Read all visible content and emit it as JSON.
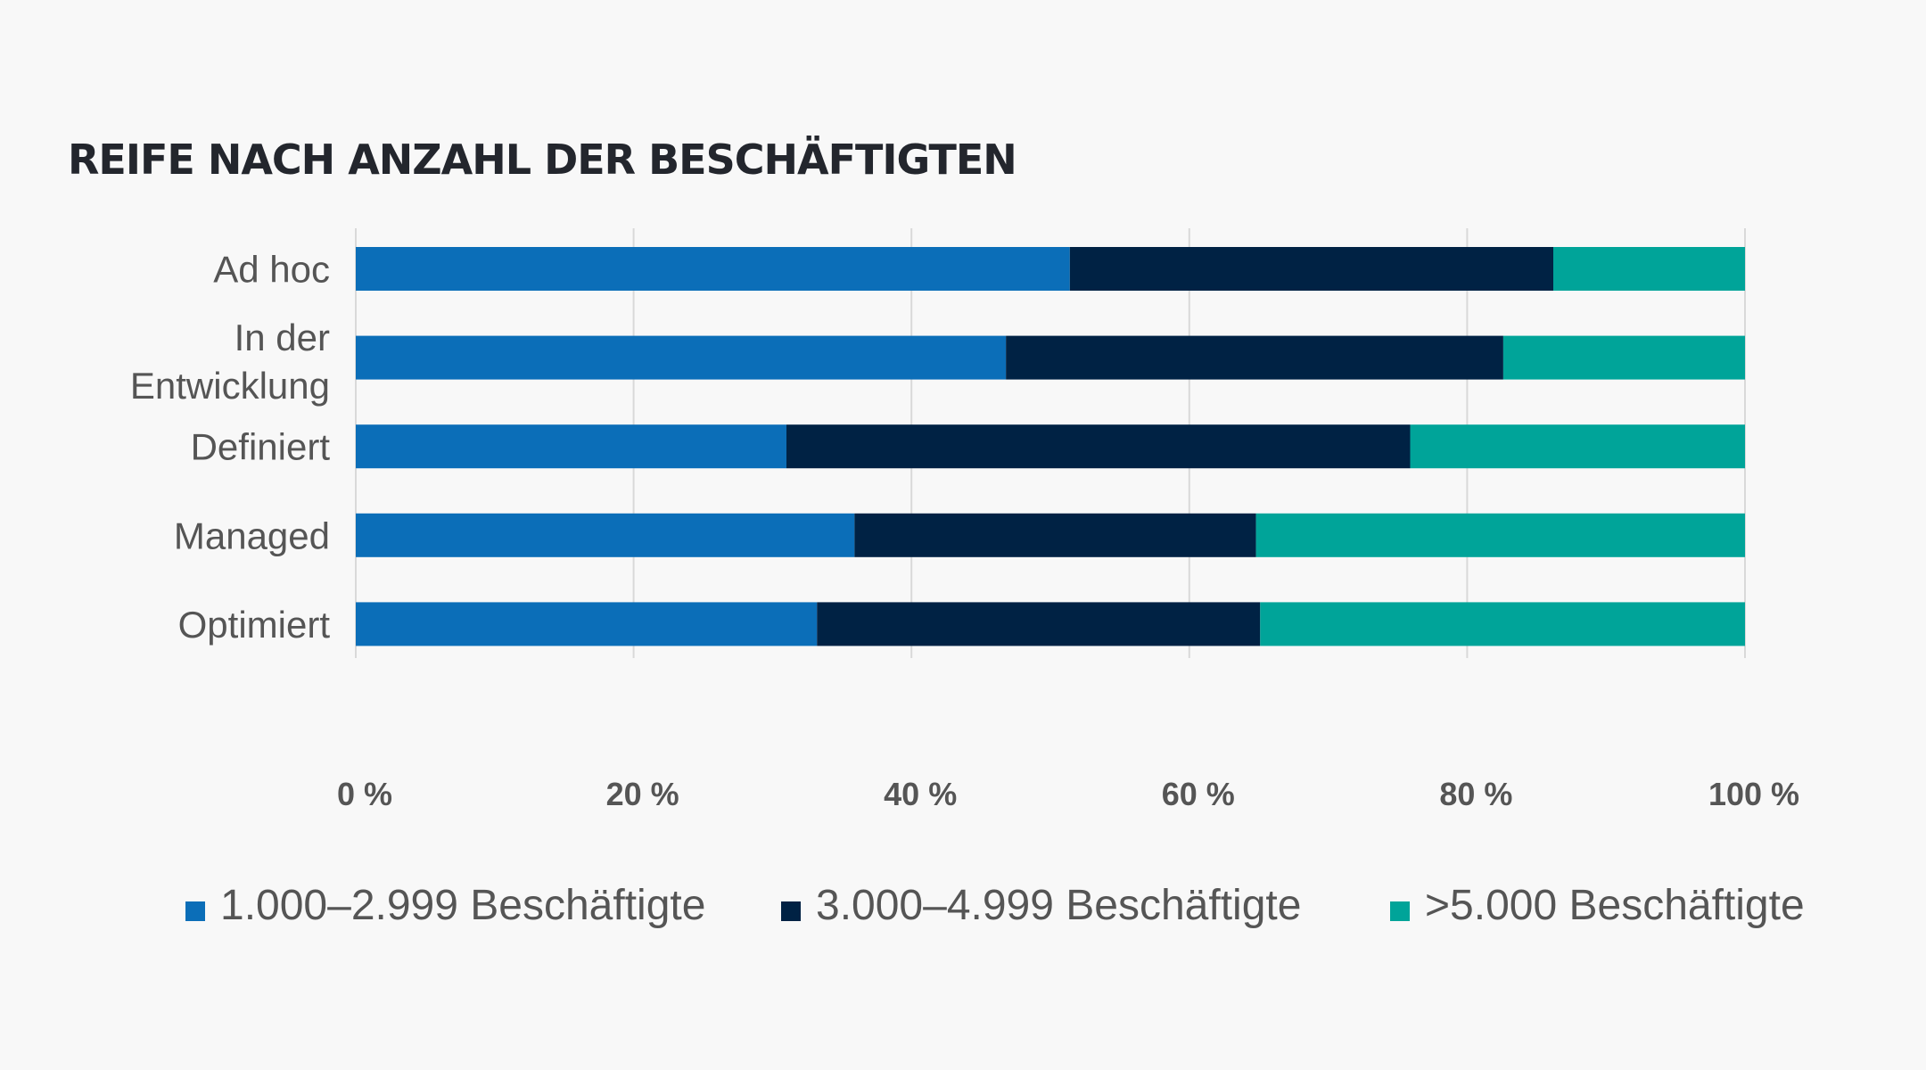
{
  "chart_data": {
    "type": "bar",
    "orientation": "horizontal",
    "stacked": true,
    "title": "REIFE NACH ANZAHL DER BESCHÄFTIGTEN",
    "xlabel": "",
    "ylabel": "",
    "categories": [
      [
        "Ad hoc"
      ],
      [
        "In der",
        "Entwicklung"
      ],
      [
        "Definiert"
      ],
      [
        "Managed"
      ],
      [
        "Optimiert"
      ]
    ],
    "series": [
      {
        "name": "1.000–2.999 Beschäftigte",
        "color": "#0b6eb8",
        "values": [
          51.4,
          46.8,
          31.0,
          35.9,
          33.2
        ]
      },
      {
        "name": "3.000–4.999 Beschäftigte",
        "color": "#002244",
        "values": [
          34.8,
          35.8,
          44.9,
          28.9,
          31.9
        ]
      },
      {
        "name": ">5.000 Beschäftigte",
        "color": "#00a499",
        "values": [
          13.8,
          17.4,
          24.1,
          35.2,
          34.9
        ]
      }
    ],
    "xlim": [
      0,
      100
    ],
    "xticks": [
      0,
      20,
      40,
      60,
      80,
      100
    ],
    "xtick_labels": [
      "0 %",
      "20 %",
      "40 %",
      "60 %",
      "80 %",
      "100 %"
    ],
    "grid": true,
    "legend_position": "bottom"
  }
}
